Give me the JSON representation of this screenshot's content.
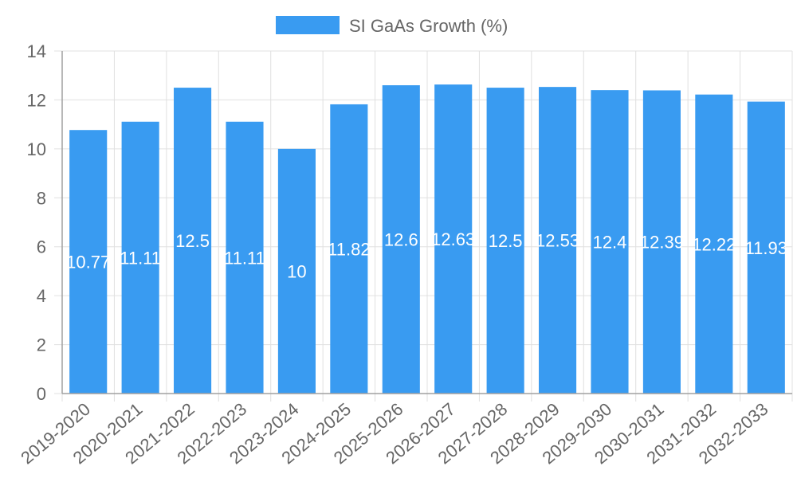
{
  "chart_data": {
    "type": "bar",
    "title": "",
    "xlabel": "",
    "ylabel": "",
    "legend": {
      "position": "top",
      "entries": [
        "SI GaAs Growth (%)"
      ]
    },
    "grid": true,
    "ylim": [
      0,
      14
    ],
    "yticks": [
      0,
      2,
      4,
      6,
      8,
      10,
      12,
      14
    ],
    "categories": [
      "2019-2020",
      "2020-2021",
      "2021-2022",
      "2022-2023",
      "2023-2024",
      "2024-2025",
      "2025-2026",
      "2026-2027",
      "2027-2028",
      "2028-2029",
      "2029-2030",
      "2030-2031",
      "2031-2032",
      "2032-2033"
    ],
    "series": [
      {
        "name": "SI GaAs Growth (%)",
        "color": "#399bf1",
        "values": [
          10.77,
          11.11,
          12.5,
          11.11,
          10,
          11.82,
          12.6,
          12.63,
          12.5,
          12.53,
          12.4,
          12.39,
          12.22,
          11.93
        ]
      }
    ],
    "data_labels": [
      "10.77",
      "11.11",
      "12.5",
      "11.11",
      "10",
      "11.82",
      "12.6",
      "12.63",
      "12.5",
      "12.53",
      "12.4",
      "12.39",
      "12.22",
      "11.93"
    ]
  }
}
